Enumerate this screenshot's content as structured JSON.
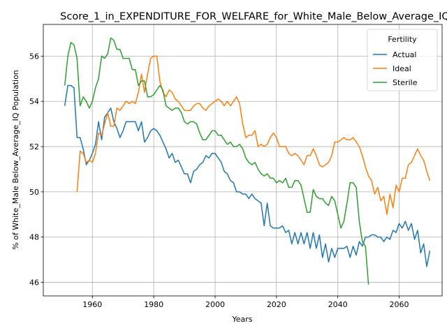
{
  "chart_data": {
    "type": "line",
    "title": "Score_1_in_EXPENDITURE_FOR_WELFARE_for_White_Male_Below_Average_IQ",
    "xlabel": "Years",
    "ylabel": "% of White_Male Below_Average_IQ Population",
    "xlim": [
      1944,
      2074
    ],
    "ylim": [
      45.4,
      57.4
    ],
    "xticks": [
      1960,
      1980,
      2000,
      2020,
      2040,
      2060
    ],
    "yticks": [
      46,
      48,
      50,
      52,
      54,
      56
    ],
    "grid": true,
    "legend": {
      "title": "Fertility",
      "position": "top-right"
    },
    "series": [
      {
        "name": "Actual",
        "color": "#1f77b4",
        "x": [
          1951,
          1952,
          1953,
          1954,
          1955,
          1956,
          1957,
          1958,
          1959,
          1960,
          1961,
          1962,
          1963,
          1964,
          1965,
          1966,
          1967,
          1968,
          1969,
          1970,
          1971,
          1972,
          1973,
          1974,
          1975,
          1976,
          1977,
          1978,
          1979,
          1980,
          1981,
          1982,
          1983,
          1984,
          1985,
          1986,
          1987,
          1988,
          1989,
          1990,
          1991,
          1992,
          1993,
          1994,
          1995,
          1996,
          1997,
          1998,
          1999,
          2000,
          2001,
          2002,
          2003,
          2004,
          2005,
          2006,
          2007,
          2008,
          2009,
          2010,
          2011,
          2012,
          2013,
          2014,
          2015,
          2016,
          2017,
          2018,
          2019,
          2020,
          2021,
          2022,
          2023,
          2024,
          2025,
          2026,
          2027,
          2028,
          2029,
          2030,
          2031,
          2032,
          2033,
          2034,
          2035,
          2036,
          2037,
          2038,
          2039,
          2040,
          2041,
          2042,
          2043,
          2044,
          2045,
          2046,
          2047,
          2048,
          2049,
          2050,
          2051,
          2052,
          2053,
          2054,
          2055,
          2056,
          2057,
          2058,
          2059,
          2060,
          2061,
          2062,
          2063,
          2064,
          2065,
          2066,
          2067,
          2068,
          2069,
          2070
        ],
        "y": [
          53.8,
          54.7,
          54.7,
          54.6,
          52.4,
          52.4,
          51.9,
          51.2,
          51.4,
          51.7,
          52.1,
          53.1,
          52.3,
          53.3,
          53.5,
          53.7,
          53.1,
          52.8,
          52.4,
          52.7,
          53.1,
          53.1,
          53.1,
          53.1,
          52.7,
          53.1,
          52.2,
          52.4,
          52.7,
          52.8,
          52.7,
          52.5,
          52.2,
          51.9,
          51.5,
          51.7,
          51.3,
          51.4,
          51.1,
          50.8,
          50.8,
          50.4,
          50.9,
          51.0,
          51.2,
          51.3,
          51.6,
          51.5,
          51.7,
          51.7,
          51.5,
          51.3,
          50.9,
          50.8,
          50.5,
          50.4,
          50.0,
          50.0,
          49.9,
          49.9,
          49.7,
          49.9,
          49.7,
          49.6,
          49.5,
          48.5,
          49.5,
          48.5,
          48.4,
          48.4,
          48.4,
          48.5,
          48.2,
          48.3,
          47.7,
          48.2,
          47.7,
          48.2,
          47.7,
          48.2,
          47.5,
          48.2,
          47.5,
          48.1,
          47.1,
          47.7,
          46.9,
          47.5,
          47.1,
          47.5,
          47.5,
          47.5,
          47.6,
          47.1,
          47.6,
          47.2,
          47.8,
          47.6,
          48.0,
          48.0,
          48.1,
          48.1,
          48.0,
          48.0,
          47.8,
          48.0,
          47.9,
          48.3,
          48.2,
          48.6,
          48.4,
          48.7,
          48.3,
          48.6,
          47.9,
          48.3,
          47.3,
          47.7,
          46.7,
          47.4
        ]
      },
      {
        "name": "Ideal",
        "color": "#ff7f0e",
        "x": [
          1955,
          1956,
          1957,
          1958,
          1959,
          1960,
          1961,
          1962,
          1963,
          1964,
          1965,
          1966,
          1967,
          1968,
          1969,
          1970,
          1971,
          1972,
          1973,
          1974,
          1975,
          1976,
          1977,
          1978,
          1979,
          1980,
          1981,
          1982,
          1983,
          1984,
          1985,
          1986,
          1987,
          1988,
          1989,
          1990,
          1991,
          1992,
          1993,
          1994,
          1995,
          1996,
          1997,
          1998,
          1999,
          2000,
          2001,
          2002,
          2003,
          2004,
          2005,
          2006,
          2007,
          2008,
          2009,
          2010,
          2011,
          2012,
          2013,
          2014,
          2015,
          2016,
          2017,
          2018,
          2019,
          2020,
          2021,
          2022,
          2023,
          2024,
          2025,
          2026,
          2027,
          2028,
          2029,
          2030,
          2031,
          2032,
          2033,
          2034,
          2035,
          2036,
          2037,
          2038,
          2039,
          2040,
          2041,
          2042,
          2043,
          2044,
          2045,
          2046,
          2047,
          2048,
          2049,
          2050,
          2051,
          2052,
          2053,
          2054,
          2055,
          2056,
          2057,
          2058,
          2059,
          2060,
          2061,
          2062,
          2063,
          2064,
          2065,
          2066,
          2067,
          2068,
          2069,
          2070
        ],
        "y": [
          50.0,
          51.8,
          51.7,
          51.3,
          51.4,
          51.3,
          51.7,
          52.6,
          52.5,
          53.0,
          53.5,
          52.9,
          52.9,
          53.7,
          53.6,
          53.8,
          54.0,
          53.9,
          54.0,
          53.9,
          54.4,
          55.2,
          54.4,
          55.2,
          55.9,
          56.0,
          56.0,
          54.9,
          54.4,
          54.2,
          54.5,
          54.4,
          54.1,
          54.0,
          53.8,
          53.6,
          53.6,
          53.6,
          53.8,
          53.9,
          53.9,
          53.7,
          53.6,
          53.8,
          53.9,
          54.0,
          54.1,
          54.0,
          53.8,
          54.0,
          53.8,
          54.0,
          54.2,
          53.9,
          53.0,
          52.4,
          52.5,
          52.5,
          52.7,
          52.0,
          52.1,
          52.0,
          52.1,
          52.4,
          52.6,
          52.4,
          52.0,
          52.0,
          52.0,
          51.7,
          51.6,
          51.7,
          51.6,
          51.4,
          51.2,
          51.6,
          51.6,
          51.9,
          51.6,
          51.2,
          51.1,
          51.2,
          51.3,
          51.6,
          52.2,
          52.2,
          52.3,
          52.4,
          52.3,
          52.3,
          52.4,
          52.2,
          52.0,
          51.6,
          51.1,
          50.7,
          50.5,
          49.9,
          50.2,
          49.6,
          49.8,
          49.0,
          49.9,
          49.3,
          50.3,
          50.0,
          50.6,
          50.6,
          51.2,
          51.3,
          51.6,
          51.9,
          51.6,
          51.4,
          50.9,
          50.5
        ]
      },
      {
        "name": "Sterile",
        "color": "#2ca02c",
        "x": [
          1951,
          1952,
          1953,
          1954,
          1955,
          1956,
          1957,
          1958,
          1959,
          1960,
          1961,
          1962,
          1963,
          1964,
          1965,
          1966,
          1967,
          1968,
          1969,
          1970,
          1971,
          1972,
          1973,
          1974,
          1975,
          1976,
          1977,
          1978,
          1979,
          1980,
          1981,
          1982,
          1983,
          1984,
          1985,
          1986,
          1987,
          1988,
          1989,
          1990,
          1991,
          1992,
          1993,
          1994,
          1995,
          1996,
          1997,
          1998,
          1999,
          2000,
          2001,
          2002,
          2003,
          2004,
          2005,
          2006,
          2007,
          2008,
          2009,
          2010,
          2011,
          2012,
          2013,
          2014,
          2015,
          2016,
          2017,
          2018,
          2019,
          2020,
          2021,
          2022,
          2023,
          2024,
          2025,
          2026,
          2027,
          2028,
          2029,
          2030,
          2031,
          2032,
          2033,
          2034,
          2035,
          2036,
          2037,
          2038,
          2039,
          2040,
          2041,
          2042,
          2043,
          2044,
          2045,
          2046,
          2047,
          2048,
          2049,
          2050
        ],
        "y": [
          54.7,
          56.0,
          56.6,
          56.5,
          55.9,
          53.8,
          54.2,
          54.0,
          53.7,
          54.0,
          54.6,
          55.0,
          56.0,
          55.9,
          56.1,
          56.8,
          56.7,
          56.3,
          56.3,
          55.9,
          55.9,
          55.9,
          55.4,
          55.4,
          54.7,
          54.9,
          54.9,
          54.2,
          54.2,
          54.3,
          54.5,
          54.7,
          54.5,
          53.8,
          53.7,
          53.6,
          53.7,
          53.7,
          53.5,
          53.1,
          53.0,
          53.1,
          53.1,
          53.0,
          52.6,
          52.3,
          52.3,
          52.5,
          52.7,
          52.7,
          52.5,
          52.5,
          52.3,
          52.1,
          52.2,
          52.0,
          52.0,
          52.1,
          51.9,
          51.5,
          51.3,
          51.2,
          51.3,
          51.0,
          50.8,
          50.7,
          50.8,
          50.6,
          50.6,
          50.4,
          50.5,
          50.4,
          50.6,
          50.2,
          50.2,
          50.5,
          50.5,
          50.3,
          49.7,
          49.1,
          49.1,
          50.1,
          49.8,
          49.7,
          49.7,
          49.5,
          49.4,
          49.8,
          49.6,
          49.0,
          48.4,
          48.7,
          49.5,
          50.4,
          50.4,
          50.2,
          48.7,
          47.8,
          47.6,
          45.9
        ]
      }
    ]
  }
}
